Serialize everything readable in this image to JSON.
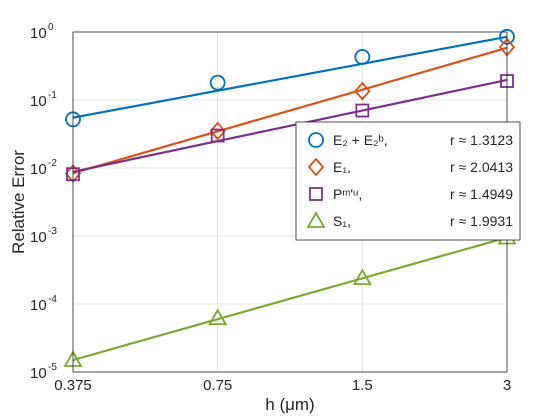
{
  "chart_data": {
    "type": "line",
    "xlabel": "h (μm)",
    "ylabel": "Relative Error",
    "xscale": "log2",
    "yscale": "log10",
    "xlim": [
      0.375,
      3
    ],
    "ylim": [
      1e-05,
      1
    ],
    "x_ticks": [
      "0.375",
      "0.75",
      "1.5",
      "3"
    ],
    "y_ticks": [
      "10",
      "10",
      "10",
      "10",
      "10",
      "10"
    ],
    "y_tick_exponents": [
      "-5",
      "-4",
      "-3",
      "-2",
      "-1",
      "0"
    ],
    "grid": true,
    "legend_position": "right",
    "x": [
      0.375,
      0.75,
      1.5,
      3
    ],
    "series": [
      {
        "name": "E₂ + E₂ᵇ,",
        "rate": "r ≈ 1.3123",
        "color": "#0072BD",
        "marker": "circle",
        "points": [
          0.052,
          0.18,
          0.43,
          0.85
        ],
        "fit": [
          0.055,
          0.137,
          0.341,
          0.85
        ]
      },
      {
        "name": "E₁,",
        "rate": "r ≈ 2.0413",
        "color": "#D95319",
        "marker": "diamond",
        "points": [
          0.0083,
          0.035,
          0.135,
          0.6
        ],
        "fit": [
          0.0084,
          0.0346,
          0.142,
          0.585
        ]
      },
      {
        "name": "Pᵐ'ᵘ,",
        "rate": "r ≈ 1.4949",
        "color": "#7E2F8E",
        "marker": "square",
        "points": [
          0.0081,
          0.03,
          0.07,
          0.19
        ],
        "fit": [
          0.0088,
          0.0249,
          0.0699,
          0.197
        ]
      },
      {
        "name": "S₁,",
        "rate": "r ≈ 1.9931",
        "color": "#77AC30",
        "marker": "triangle",
        "points": [
          1.5e-05,
          6.2e-05,
          0.00024,
          0.00095
        ],
        "fit": [
          1.5e-05,
          5.99e-05,
          0.000239,
          0.00095
        ]
      }
    ]
  }
}
